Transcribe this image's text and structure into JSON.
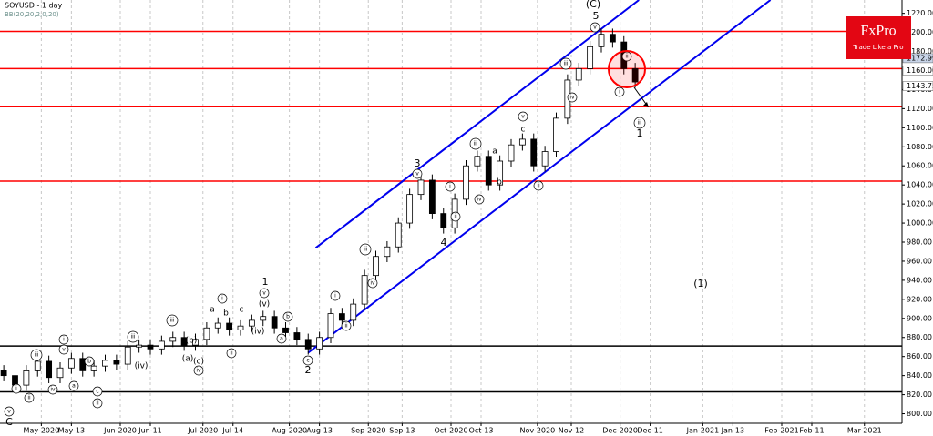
{
  "chart_data": {
    "type": "candlestick",
    "title": "SOYUSD - 1 day",
    "subtitle": "BB(20,20,2,0,20)",
    "logo_text": "FxPro",
    "logo_tagline": "Trade Like a Pro",
    "xlim": [
      0,
      240
    ],
    "ylim": [
      790,
      1234
    ],
    "grid": true,
    "up_color": "#ffffff",
    "down_color": "#000000",
    "xticks": [
      {
        "value": 11,
        "label": "May-2020"
      },
      {
        "value": 19,
        "label": "May-13"
      },
      {
        "value": 32,
        "label": "Jun-2020"
      },
      {
        "value": 40,
        "label": "Jun-11"
      },
      {
        "value": 54,
        "label": "Jul-2020"
      },
      {
        "value": 62,
        "label": "Jul-14"
      },
      {
        "value": 77,
        "label": "Aug-2020"
      },
      {
        "value": 85,
        "label": "Aug-13"
      },
      {
        "value": 98,
        "label": "Sep-2020"
      },
      {
        "value": 107,
        "label": "Sep-13"
      },
      {
        "value": 120,
        "label": "Oct-2020"
      },
      {
        "value": 128,
        "label": "Oct-13"
      },
      {
        "value": 143,
        "label": "Nov-2020"
      },
      {
        "value": 152,
        "label": "Nov-12"
      },
      {
        "value": 165,
        "label": "Dec-2020"
      },
      {
        "value": 173,
        "label": "Dec-11"
      },
      {
        "value": 187,
        "label": "Jan-2021"
      },
      {
        "value": 195,
        "label": "Jan-13"
      },
      {
        "value": 208,
        "label": "Feb-2021"
      },
      {
        "value": 216,
        "label": "Feb-11"
      },
      {
        "value": 230,
        "label": "Mar-2021"
      }
    ],
    "yticks": [
      {
        "value": 800,
        "label": "800.00"
      },
      {
        "value": 820,
        "label": "820.00"
      },
      {
        "value": 840,
        "label": "840.00"
      },
      {
        "value": 860,
        "label": "860.00"
      },
      {
        "value": 880,
        "label": "880.00"
      },
      {
        "value": 900,
        "label": "900.00"
      },
      {
        "value": 920,
        "label": "920.00"
      },
      {
        "value": 940,
        "label": "940.00"
      },
      {
        "value": 960,
        "label": "960.00"
      },
      {
        "value": 980,
        "label": "980.00"
      },
      {
        "value": 1000,
        "label": "1000.00"
      },
      {
        "value": 1020,
        "label": "1020.00"
      },
      {
        "value": 1040,
        "label": "1040.00"
      },
      {
        "value": 1060,
        "label": "1060.00"
      },
      {
        "value": 1080,
        "label": "1080.00"
      },
      {
        "value": 1100,
        "label": "1100.00"
      },
      {
        "value": 1120,
        "label": "1120.00"
      },
      {
        "value": 1140,
        "label": "1140.00"
      },
      {
        "value": 1180,
        "label": "1180.00"
      },
      {
        "value": 1200,
        "label": "1200.00"
      },
      {
        "value": 1220,
        "label": "1220.00"
      }
    ],
    "price_tags": [
      {
        "value": 1172.99,
        "label": "1172.99",
        "color": "#c8d4e8"
      },
      {
        "value": 1160,
        "label": "1160.00",
        "color": "#ffffff"
      },
      {
        "value": 1143.75,
        "label": "1143.75",
        "color": "#ffffff"
      }
    ],
    "hlines": [
      {
        "value": 1201,
        "color": "#ff0000"
      },
      {
        "value": 1162,
        "color": "#ff0000"
      },
      {
        "value": 1122,
        "color": "#ff0000"
      },
      {
        "value": 1044,
        "color": "#ff0000"
      },
      {
        "value": 871,
        "color": "#000000"
      },
      {
        "value": 823,
        "color": "#000000"
      }
    ],
    "channels": [
      {
        "x": [
          84,
          170
        ],
        "y": [
          974,
          1234
        ],
        "color": "#0000ee"
      },
      {
        "x": [
          82,
          205
        ],
        "y": [
          864,
          1234
        ],
        "color": "#0000ee"
      }
    ],
    "x": [
      1,
      4,
      7,
      10,
      13,
      16,
      19,
      22,
      25,
      28,
      31,
      34,
      37,
      40,
      43,
      46,
      49,
      52,
      55,
      58,
      61,
      64,
      67,
      70,
      73,
      76,
      79,
      82,
      85,
      88,
      91,
      94,
      97,
      100,
      103,
      106,
      109,
      112,
      115,
      118,
      121,
      124,
      127,
      130,
      133,
      136,
      139,
      142,
      145,
      148,
      151,
      154,
      157,
      160,
      163,
      166,
      169
    ],
    "open": [
      845,
      840,
      830,
      845,
      855,
      838,
      848,
      858,
      845,
      850,
      856,
      852,
      870,
      872,
      868,
      876,
      880,
      872,
      878,
      890,
      895,
      888,
      892,
      898,
      902,
      890,
      885,
      878,
      868,
      880,
      905,
      898,
      915,
      945,
      965,
      975,
      1000,
      1030,
      1045,
      1010,
      995,
      1025,
      1060,
      1070,
      1040,
      1065,
      1082,
      1088,
      1060,
      1075,
      1110,
      1150,
      1162,
      1185,
      1198,
      1190,
      1162
    ],
    "high": [
      851,
      846,
      851,
      861,
      861,
      854,
      864,
      864,
      856,
      862,
      862,
      876,
      878,
      878,
      882,
      886,
      886,
      884,
      896,
      901,
      901,
      898,
      904,
      908,
      908,
      896,
      891,
      884,
      886,
      911,
      911,
      921,
      951,
      971,
      981,
      1006,
      1036,
      1051,
      1051,
      1016,
      1031,
      1066,
      1076,
      1076,
      1071,
      1088,
      1094,
      1094,
      1081,
      1116,
      1156,
      1168,
      1191,
      1204,
      1204,
      1196,
      1168
    ],
    "low": [
      834,
      824,
      824,
      839,
      832,
      832,
      842,
      839,
      839,
      844,
      846,
      846,
      864,
      862,
      862,
      870,
      866,
      866,
      872,
      884,
      882,
      882,
      886,
      892,
      884,
      879,
      872,
      862,
      862,
      874,
      892,
      892,
      909,
      939,
      959,
      969,
      994,
      1024,
      1004,
      989,
      989,
      1019,
      1054,
      1034,
      1034,
      1059,
      1076,
      1054,
      1054,
      1069,
      1104,
      1144,
      1156,
      1179,
      1184,
      1156,
      1142
    ],
    "close": [
      840,
      830,
      845,
      855,
      838,
      848,
      858,
      845,
      850,
      856,
      852,
      870,
      872,
      868,
      876,
      880,
      872,
      878,
      890,
      895,
      888,
      892,
      898,
      902,
      890,
      885,
      878,
      868,
      880,
      905,
      898,
      915,
      945,
      965,
      975,
      1000,
      1030,
      1045,
      1010,
      995,
      1025,
      1060,
      1070,
      1040,
      1065,
      1082,
      1088,
      1060,
      1075,
      1110,
      1150,
      1162,
      1185,
      1198,
      1190,
      1162,
      1148
    ],
    "annotations": [
      {
        "text": "(C)",
        "circled": false
      },
      {
        "text": "5",
        "circled": false
      },
      {
        "text": "v",
        "circled": true
      },
      {
        "text": "ii",
        "circled": true
      },
      {
        "text": "i",
        "circled": true
      },
      {
        "text": "iii",
        "circled": true
      },
      {
        "text": "1",
        "circled": false
      },
      {
        "text": "(1)",
        "circled": false
      },
      {
        "text": "3",
        "circled": false
      },
      {
        "text": "v",
        "circled": true
      },
      {
        "text": "4",
        "circled": false
      },
      {
        "text": "c",
        "circled": true
      },
      {
        "text": "2",
        "circled": false
      },
      {
        "text": "1",
        "circled": false
      },
      {
        "text": "v",
        "circled": true
      },
      {
        "text": "iii",
        "circled": true
      },
      {
        "text": "iv",
        "circled": true
      },
      {
        "text": "v",
        "circled": true
      },
      {
        "text": "iii",
        "circled": true
      },
      {
        "text": "iv",
        "circled": true
      },
      {
        "text": "ii",
        "circled": true
      },
      {
        "text": "i",
        "circled": true
      },
      {
        "text": "ii",
        "circled": true
      },
      {
        "text": "iii",
        "circled": true
      },
      {
        "text": "iv",
        "circled": true
      },
      {
        "text": "i",
        "circled": true
      },
      {
        "text": "ii",
        "circled": true
      },
      {
        "text": "b",
        "circled": true
      },
      {
        "text": "a",
        "circled": true
      },
      {
        "text": "i",
        "circled": true
      },
      {
        "text": "ii",
        "circled": true
      },
      {
        "text": "iii",
        "circled": true
      },
      {
        "text": "iv",
        "circled": true
      },
      {
        "text": "(iv)",
        "circled": false
      },
      {
        "text": "(v)",
        "circled": false
      },
      {
        "text": "i",
        "circled": true
      },
      {
        "text": "v",
        "circled": true
      },
      {
        "text": "iii",
        "circled": true
      },
      {
        "text": "i",
        "circled": true
      },
      {
        "text": "ii",
        "circled": true
      },
      {
        "text": "v",
        "circled": true
      },
      {
        "text": "C",
        "circled": false
      },
      {
        "text": "iii",
        "circled": true
      },
      {
        "text": "ii",
        "circled": true
      },
      {
        "text": "c",
        "circled": true
      },
      {
        "text": "b",
        "circled": true
      },
      {
        "text": "a",
        "circled": true
      },
      {
        "text": "iv",
        "circled": true
      },
      {
        "text": "(a)",
        "circled": false
      },
      {
        "text": "(b)",
        "circled": false
      },
      {
        "text": "(c)",
        "circled": false
      },
      {
        "text": "(iv)",
        "circled": false
      },
      {
        "text": "a",
        "circled": false
      },
      {
        "text": "b",
        "circled": false
      },
      {
        "text": "c",
        "circled": false
      },
      {
        "text": "a",
        "circled": false
      },
      {
        "text": "b",
        "circled": false
      },
      {
        "text": "c",
        "circled": false
      }
    ]
  }
}
